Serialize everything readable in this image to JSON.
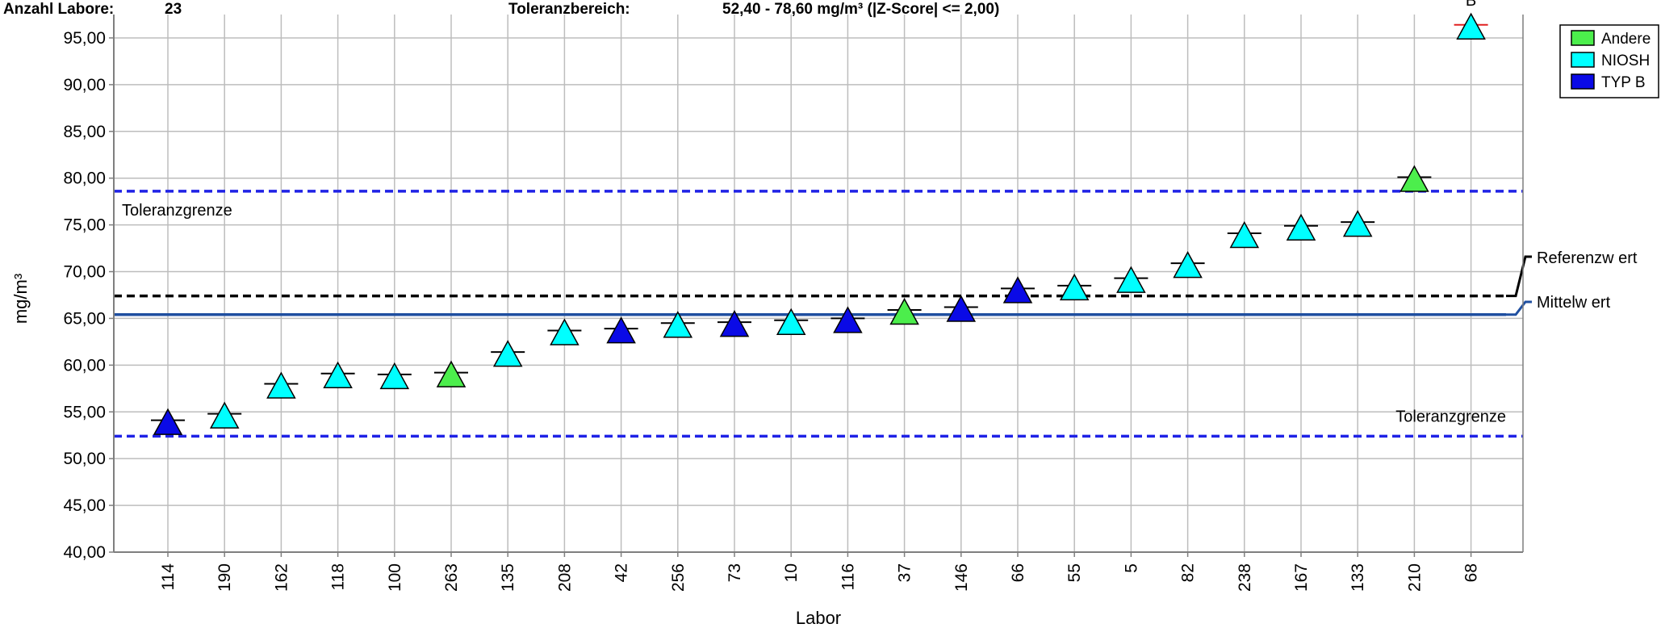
{
  "header": {
    "labs_label": "Anzahl Labore:",
    "labs_count": "23",
    "tolerance_label": "Toleranzbereich:",
    "tolerance_value": "52,40 - 78,60 mg/m³ (|Z-Score| <= 2,00)"
  },
  "chart_data": {
    "type": "scatter",
    "xlabel": "Labor",
    "ylabel": "mg/m³",
    "ylim": [
      40,
      97.5
    ],
    "yticks": [
      40,
      45,
      50,
      55,
      60,
      65,
      70,
      75,
      80,
      85,
      90,
      95
    ],
    "ytick_labels": [
      "40,00",
      "45,00",
      "50,00",
      "55,00",
      "60,00",
      "65,00",
      "70,00",
      "75,00",
      "80,00",
      "85,00",
      "90,00",
      "95,00"
    ],
    "grid": true,
    "categories": [
      "114",
      "190",
      "162",
      "118",
      "100",
      "263",
      "135",
      "208",
      "42",
      "256",
      "73",
      "10",
      "116",
      "37",
      "146",
      "66",
      "55",
      "5",
      "82",
      "238",
      "167",
      "133",
      "210",
      "68"
    ],
    "values": [
      54.1,
      54.8,
      58.0,
      59.1,
      59.0,
      59.2,
      61.4,
      63.7,
      63.9,
      64.5,
      64.6,
      64.8,
      65.0,
      65.9,
      66.2,
      68.2,
      68.5,
      69.3,
      70.9,
      74.1,
      74.9,
      75.3,
      80.1,
      96.4
    ],
    "methods": [
      "TYP B",
      "NIOSH",
      "NIOSH",
      "NIOSH",
      "NIOSH",
      "Andere",
      "NIOSH",
      "NIOSH",
      "TYP B",
      "NIOSH",
      "TYP B",
      "NIOSH",
      "TYP B",
      "Andere",
      "TYP B",
      "TYP B",
      "NIOSH",
      "NIOSH",
      "NIOSH",
      "NIOSH",
      "NIOSH",
      "NIOSH",
      "Andere",
      "NIOSH"
    ],
    "point_annotations": {
      "68": "B"
    },
    "reference_lines": {
      "tolerance_upper": 78.6,
      "tolerance_lower": 52.4,
      "reference_value": 67.4,
      "mean_value": 65.4,
      "tolerance_label": "Toleranzgrenze",
      "reference_label": "Referenzw ert",
      "mean_label": "Mittelw ert"
    },
    "legend": {
      "position": "top-right",
      "items": [
        {
          "name": "Andere",
          "color": "#4cee4c"
        },
        {
          "name": "NIOSH",
          "color": "#00ffff"
        },
        {
          "name": "TYP B",
          "color": "#0a0ae6"
        }
      ]
    },
    "colors": {
      "tolerance_line": "#1f22e6",
      "reference_line": "#000000",
      "mean_line": "#1f4fa0",
      "outlier_tick": "#e02020"
    }
  }
}
